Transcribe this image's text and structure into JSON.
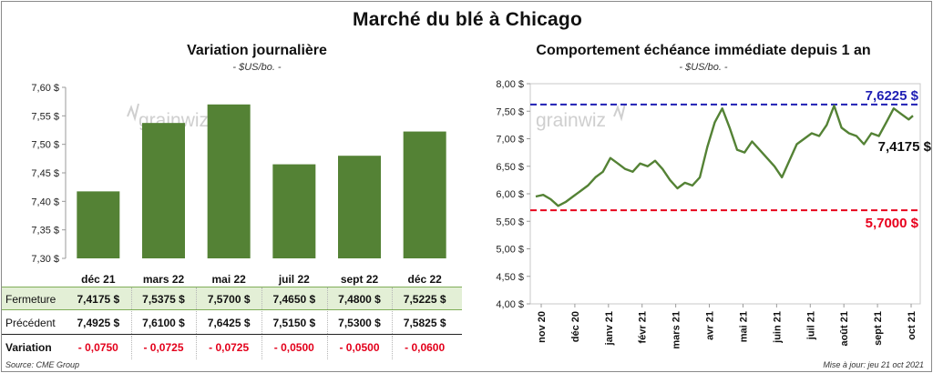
{
  "main_title": "Marché du blé à Chicago",
  "left_panel": {
    "title": "Variation journalière",
    "unit": "- $US/bo. -"
  },
  "right_panel": {
    "title": "Comportement échéance immédiate depuis 1 an",
    "unit": "- $US/bo. -",
    "max_label": "7,6225 $",
    "last_label": "7,4175 $",
    "min_label": "5,7000 $"
  },
  "watermark": "grainwiz",
  "table": {
    "row_labels": [
      "Fermeture",
      "Précédent",
      "Variation"
    ],
    "fermeture": [
      "7,4175  $",
      "7,5375  $",
      "7,5700  $",
      "7,4650  $",
      "7,4800  $",
      "7,5225  $"
    ],
    "precedent": [
      "7,4925  $",
      "7,6100  $",
      "7,6425  $",
      "7,5150  $",
      "7,5300  $",
      "7,5825  $"
    ],
    "variation": [
      "- 0,0750",
      "- 0,0725",
      "- 0,0725",
      "- 0,0500",
      "- 0,0500",
      "- 0,0600"
    ]
  },
  "footer": {
    "source": "Source: CME Group",
    "updated": "Mise à jour: jeu 21 oct 2021"
  },
  "colors": {
    "bar": "#548235",
    "line": "#548235",
    "max_line": "#1f1fb4",
    "min_line": "#e8001c",
    "table_highlight": "#e3efd6"
  },
  "chart_data": [
    {
      "type": "bar",
      "categories": [
        "déc 21",
        "mars 22",
        "mai 22",
        "juil 22",
        "sept 22",
        "déc 22"
      ],
      "values": [
        7.4175,
        7.5375,
        7.57,
        7.465,
        7.48,
        7.5225
      ],
      "title": "Variation journalière",
      "subtitle": "- $US/bo. -",
      "xlabel": "",
      "ylabel": "",
      "ylim": [
        7.3,
        7.6
      ],
      "yticks": [
        "7,30 $",
        "7,35 $",
        "7,40 $",
        "7,45 $",
        "7,50 $",
        "7,55 $",
        "7,60 $"
      ],
      "grid": false
    },
    {
      "type": "line",
      "title": "Comportement échéance immédiate depuis 1 an",
      "subtitle": "- $US/bo. -",
      "x": [
        "2020-11-01",
        "2020-11-08",
        "2020-11-15",
        "2020-11-22",
        "2020-11-29",
        "2020-12-06",
        "2020-12-13",
        "2020-12-20",
        "2020-12-27",
        "2021-01-03",
        "2021-01-10",
        "2021-01-17",
        "2021-01-24",
        "2021-01-31",
        "2021-02-07",
        "2021-02-14",
        "2021-02-21",
        "2021-02-28",
        "2021-03-07",
        "2021-03-14",
        "2021-03-21",
        "2021-03-28",
        "2021-04-04",
        "2021-04-11",
        "2021-04-18",
        "2021-04-25",
        "2021-05-02",
        "2021-05-09",
        "2021-05-16",
        "2021-05-23",
        "2021-05-30",
        "2021-06-06",
        "2021-06-13",
        "2021-06-20",
        "2021-06-27",
        "2021-07-04",
        "2021-07-11",
        "2021-07-18",
        "2021-07-25",
        "2021-08-01",
        "2021-08-08",
        "2021-08-15",
        "2021-08-22",
        "2021-08-29",
        "2021-09-05",
        "2021-09-12",
        "2021-09-19",
        "2021-09-26",
        "2021-10-03",
        "2021-10-10",
        "2021-10-17",
        "2021-10-21"
      ],
      "values": [
        5.95,
        5.98,
        5.9,
        5.78,
        5.85,
        5.95,
        6.05,
        6.15,
        6.3,
        6.4,
        6.65,
        6.55,
        6.45,
        6.4,
        6.55,
        6.5,
        6.6,
        6.45,
        6.25,
        6.1,
        6.2,
        6.15,
        6.3,
        6.85,
        7.3,
        7.55,
        7.2,
        6.8,
        6.75,
        6.95,
        6.8,
        6.65,
        6.5,
        6.3,
        6.6,
        6.9,
        7.0,
        7.1,
        7.05,
        7.25,
        7.6,
        7.2,
        7.1,
        7.05,
        6.9,
        7.1,
        7.05,
        7.3,
        7.55,
        7.45,
        7.35,
        7.4175
      ],
      "xticks": [
        "nov 20",
        "déc 20",
        "janv 21",
        "févr 21",
        "mars 21",
        "avr 21",
        "mai 21",
        "juin 21",
        "juil 21",
        "août 21",
        "sept 21",
        "oct 21"
      ],
      "yticks": [
        "4,00 $",
        "4,50 $",
        "5,00 $",
        "5,50 $",
        "6,00 $",
        "6,50 $",
        "7,00 $",
        "7,50 $",
        "8,00 $"
      ],
      "ylim": [
        4.0,
        8.0
      ],
      "max": 7.6225,
      "min": 5.7,
      "last": 7.4175,
      "grid": false
    }
  ]
}
